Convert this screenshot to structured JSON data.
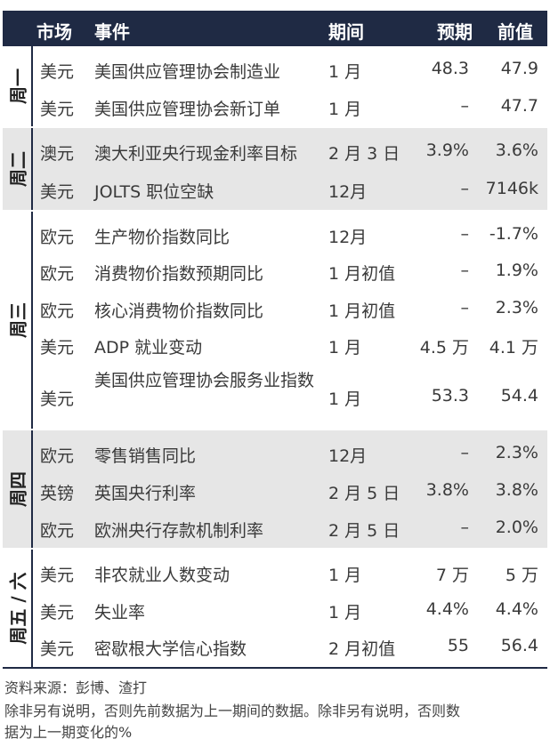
{
  "header": {
    "market": "市场",
    "event": "事件",
    "period": "期间",
    "forecast": "预期",
    "prior": "前值"
  },
  "groups": [
    {
      "day": "周一",
      "rows": [
        {
          "market": "美元",
          "event": "美国供应管理协会制造业",
          "period": "1 月",
          "forecast": "48.3",
          "prior": "47.9"
        },
        {
          "market": "美元",
          "event": "美国供应管理协会新订单",
          "period": "1 月",
          "forecast": "–",
          "prior": "47.7"
        }
      ]
    },
    {
      "day": "周二",
      "rows": [
        {
          "market": "澳元",
          "event": "澳大利亚央行现金利率目标",
          "period": "2 月 3 日",
          "forecast": "3.9%",
          "prior": "3.6%"
        },
        {
          "market": "美元",
          "event": "JOLTS 职位空缺",
          "period": "12月",
          "forecast": "–",
          "prior": "7146k"
        }
      ]
    },
    {
      "day": "周三",
      "rows": [
        {
          "market": "欧元",
          "event": "生产物价指数同比",
          "period": "12月",
          "forecast": "–",
          "prior": "-1.7%"
        },
        {
          "market": "欧元",
          "event": "消费物价指数预期同比",
          "period": "1 月初值",
          "forecast": "–",
          "prior": "1.9%"
        },
        {
          "market": "欧元",
          "event": "核心消费物价指数同比",
          "period": "1 月初值",
          "forecast": "–",
          "prior": "2.3%"
        },
        {
          "market": "美元",
          "event": "ADP 就业变动",
          "period": "1 月",
          "forecast": "4.5 万",
          "prior": "4.1 万"
        },
        {
          "market": "美元",
          "event": "美国供应管理协会服务业指数",
          "period": "1 月",
          "forecast": "53.3",
          "prior": "54.4"
        }
      ]
    },
    {
      "day": "周四",
      "rows": [
        {
          "market": "欧元",
          "event": "零售销售同比",
          "period": "12月",
          "forecast": "–",
          "prior": "2.3%"
        },
        {
          "market": "英镑",
          "event": "英国央行利率",
          "period": "2 月 5 日",
          "forecast": "3.8%",
          "prior": "3.8%"
        },
        {
          "market": "欧元",
          "event": "欧洲央行存款机制利率",
          "period": "2 月 5 日",
          "forecast": "–",
          "prior": "2.0%"
        }
      ]
    },
    {
      "day": "周五 / 六",
      "rows": [
        {
          "market": "美元",
          "event": "非农就业人数变动",
          "period": "1 月",
          "forecast": "7 万",
          "prior": "5 万"
        },
        {
          "market": "美元",
          "event": "失业率",
          "period": "1 月",
          "forecast": "4.4%",
          "prior": "4.4%"
        },
        {
          "market": "美元",
          "event": "密歇根大学信心指数",
          "period": "2 月初值",
          "forecast": "55",
          "prior": "56.4"
        }
      ]
    }
  ],
  "notes": {
    "source": "资料来源：彭博、渣打",
    "line1": "除非另有说明，否则先前数据为上一期间的数据。除非另有说明，否则数",
    "line2": "据为上一期变化的%"
  },
  "colors": {
    "header_bg": "#1f2a44",
    "shaded_bg": "#e6e6e6"
  }
}
